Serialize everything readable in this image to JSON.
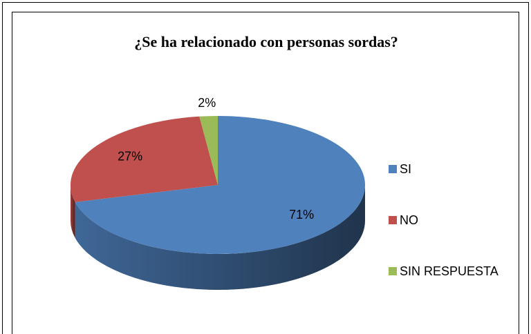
{
  "chart_data": {
    "type": "pie",
    "title": "¿Se ha relacionado con personas sordas?",
    "categories": [
      "SI",
      "NO",
      "SIN RESPUESTA"
    ],
    "values": [
      71,
      27,
      2
    ],
    "value_labels": [
      "71%",
      "27%",
      "2%"
    ],
    "colors": [
      "#4f81bd",
      "#c0504d",
      "#9bbb59"
    ],
    "legend": "right"
  }
}
